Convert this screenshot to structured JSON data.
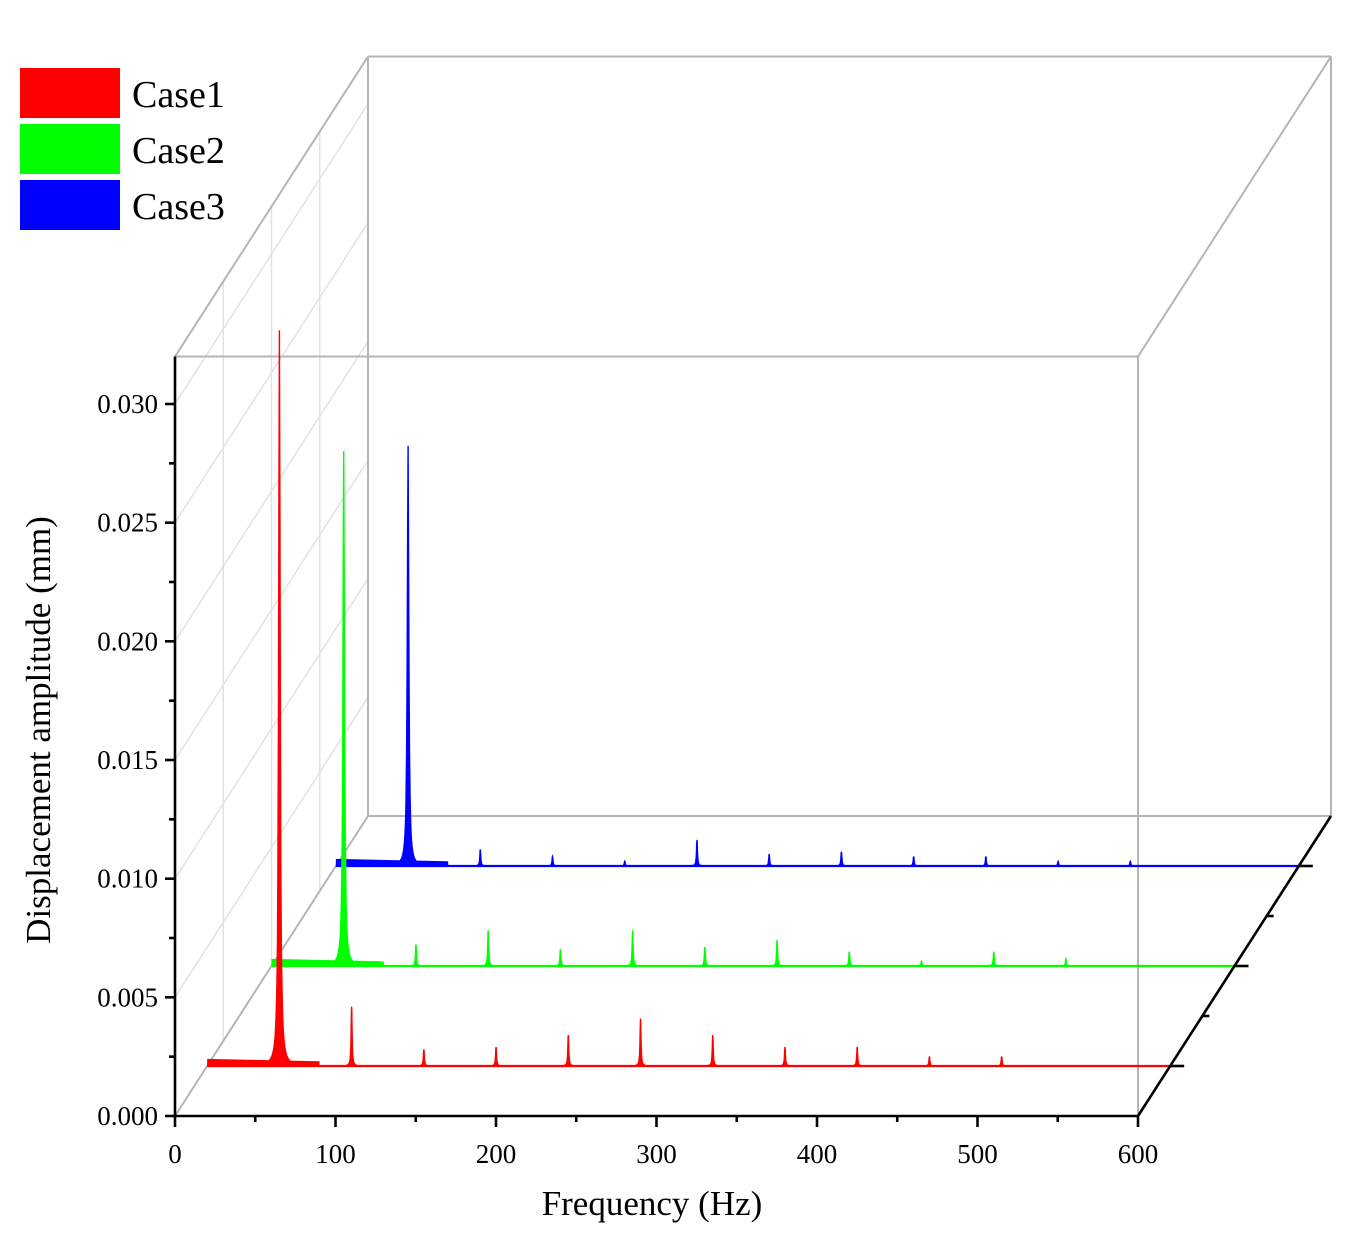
{
  "chart_data": {
    "type": "area",
    "subtype": "3d-waterfall",
    "title": "",
    "xlabel": "Frequency (Hz)",
    "ylabel": "Displacement amplitude (mm)",
    "xlim": [
      0,
      600
    ],
    "ylim": [
      0,
      0.032
    ],
    "xticks": [
      "0",
      "100",
      "200",
      "300",
      "400",
      "500",
      "600"
    ],
    "yticks": [
      "0.000",
      "0.005",
      "0.010",
      "0.015",
      "0.020",
      "0.025",
      "0.030"
    ],
    "grid": true,
    "legend_position": "top-left",
    "series": [
      {
        "name": "Case1",
        "color": "#ff0000",
        "peaks": [
          {
            "f": 45,
            "a": 0.031
          },
          {
            "f": 90,
            "a": 0.0025
          },
          {
            "f": 135,
            "a": 0.0007
          },
          {
            "f": 180,
            "a": 0.0008
          },
          {
            "f": 225,
            "a": 0.0013
          },
          {
            "f": 270,
            "a": 0.002
          },
          {
            "f": 315,
            "a": 0.0013
          },
          {
            "f": 360,
            "a": 0.0008
          },
          {
            "f": 405,
            "a": 0.0008
          },
          {
            "f": 450,
            "a": 0.0004
          },
          {
            "f": 495,
            "a": 0.0004
          }
        ]
      },
      {
        "name": "Case2",
        "color": "#00ff00",
        "peaks": [
          {
            "f": 45,
            "a": 0.0217
          },
          {
            "f": 90,
            "a": 0.0009
          },
          {
            "f": 135,
            "a": 0.0015
          },
          {
            "f": 180,
            "a": 0.0007
          },
          {
            "f": 225,
            "a": 0.0015
          },
          {
            "f": 270,
            "a": 0.0008
          },
          {
            "f": 315,
            "a": 0.0011
          },
          {
            "f": 360,
            "a": 0.0006
          },
          {
            "f": 405,
            "a": 0.0002
          },
          {
            "f": 450,
            "a": 0.0006
          },
          {
            "f": 495,
            "a": 0.0003
          }
        ]
      },
      {
        "name": "Case3",
        "color": "#0000ff",
        "peaks": [
          {
            "f": 45,
            "a": 0.0177
          },
          {
            "f": 90,
            "a": 0.0007
          },
          {
            "f": 135,
            "a": 0.0004
          },
          {
            "f": 180,
            "a": 0.0002
          },
          {
            "f": 225,
            "a": 0.0011
          },
          {
            "f": 270,
            "a": 0.0005
          },
          {
            "f": 315,
            "a": 0.0006
          },
          {
            "f": 360,
            "a": 0.0004
          },
          {
            "f": 405,
            "a": 0.0004
          },
          {
            "f": 450,
            "a": 0.0002
          },
          {
            "f": 495,
            "a": 0.0002
          }
        ]
      }
    ]
  }
}
